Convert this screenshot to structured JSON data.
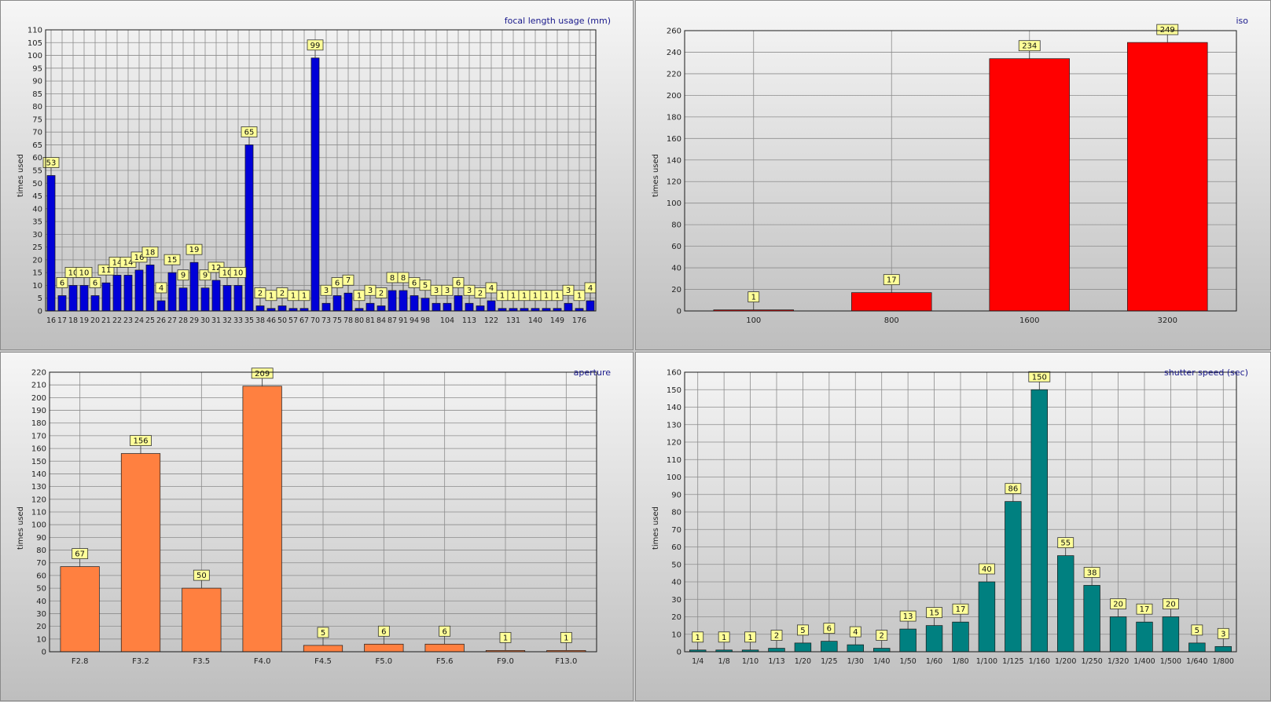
{
  "chart_data": [
    {
      "type": "bar",
      "title": "focal length usage (mm)",
      "xlabel": "",
      "ylabel": "times used",
      "ylim": [
        0,
        110
      ],
      "ytick_step": 5,
      "bar_color": "#0000d8",
      "categories": [
        "16",
        "17",
        "18",
        "19",
        "20",
        "21",
        "22",
        "23",
        "24",
        "25",
        "26",
        "27",
        "28",
        "29",
        "30",
        "31",
        "32",
        "33",
        "35",
        "38",
        "46",
        "50",
        "57",
        "67",
        "70",
        "73",
        "75",
        "78",
        "80",
        "81",
        "84",
        "87",
        "91",
        "94",
        "98",
        "",
        "104",
        "",
        "113",
        "",
        "122",
        "",
        "131",
        "",
        "140",
        "",
        "149",
        "",
        "176",
        ""
      ],
      "values": [
        53,
        6,
        10,
        10,
        6,
        11,
        14,
        14,
        16,
        18,
        4,
        15,
        9,
        19,
        9,
        12,
        10,
        10,
        65,
        2,
        1,
        2,
        1,
        1,
        99,
        3,
        6,
        7,
        1,
        3,
        2,
        8,
        8,
        6,
        5,
        3,
        3,
        6,
        3,
        2,
        4,
        1,
        1,
        1,
        1,
        1,
        1,
        3,
        1,
        4
      ],
      "labels": [
        "53",
        "6",
        "10",
        "10",
        "6",
        "11",
        "14",
        "14",
        "16",
        "18",
        "4",
        "15",
        "9",
        "19",
        "9",
        "12",
        "10",
        "10",
        "65",
        "2",
        "1",
        "2",
        "1",
        "1",
        "99",
        "3",
        "6",
        "7",
        "1",
        "3",
        "2",
        "8",
        "8",
        "6",
        "5",
        "3",
        "3",
        "6",
        "3",
        "2",
        "4",
        "1",
        "1",
        "1",
        "1",
        "1",
        "1",
        "3",
        "1",
        "4"
      ]
    },
    {
      "type": "bar",
      "title": "iso",
      "xlabel": "",
      "ylabel": "times used",
      "ylim": [
        0,
        260
      ],
      "ytick_step": 20,
      "bar_color": "#ff0000",
      "categories": [
        "100",
        "800",
        "1600",
        "3200"
      ],
      "values": [
        1,
        17,
        234,
        249
      ],
      "labels": [
        "1",
        "17",
        "234",
        "249"
      ]
    },
    {
      "type": "bar",
      "title": "aperture",
      "xlabel": "",
      "ylabel": "times used",
      "ylim": [
        0,
        220
      ],
      "ytick_step": 10,
      "bar_color": "#ff8040",
      "categories": [
        "F2.8",
        "F3.2",
        "F3.5",
        "F4.0",
        "F4.5",
        "F5.0",
        "F5.6",
        "F9.0",
        "F13.0"
      ],
      "values": [
        67,
        156,
        50,
        209,
        5,
        6,
        6,
        1,
        1
      ],
      "labels": [
        "67",
        "156",
        "50",
        "209",
        "5",
        "6",
        "6",
        "1",
        "1"
      ]
    },
    {
      "type": "bar",
      "title": "shutter speed (sec)",
      "xlabel": "",
      "ylabel": "times used",
      "ylim": [
        0,
        160
      ],
      "ytick_step": 10,
      "bar_color": "#008080",
      "categories": [
        "1/4",
        "1/8",
        "1/10",
        "1/13",
        "1/20",
        "1/25",
        "1/30",
        "1/40",
        "1/50",
        "1/60",
        "1/80",
        "1/100",
        "1/125",
        "1/160",
        "1/200",
        "1/250",
        "1/320",
        "1/400",
        "1/500",
        "1/640",
        "1/800"
      ],
      "values": [
        1,
        1,
        1,
        2,
        5,
        6,
        4,
        2,
        13,
        15,
        17,
        40,
        86,
        150,
        55,
        38,
        20,
        17,
        20,
        5,
        3
      ],
      "labels": [
        "1",
        "1",
        "1",
        "2",
        "5",
        "6",
        "4",
        "2",
        "13",
        "15",
        "17",
        "40",
        "86",
        "150",
        "55",
        "38",
        "20",
        "17",
        "20",
        "5",
        "3"
      ]
    }
  ]
}
